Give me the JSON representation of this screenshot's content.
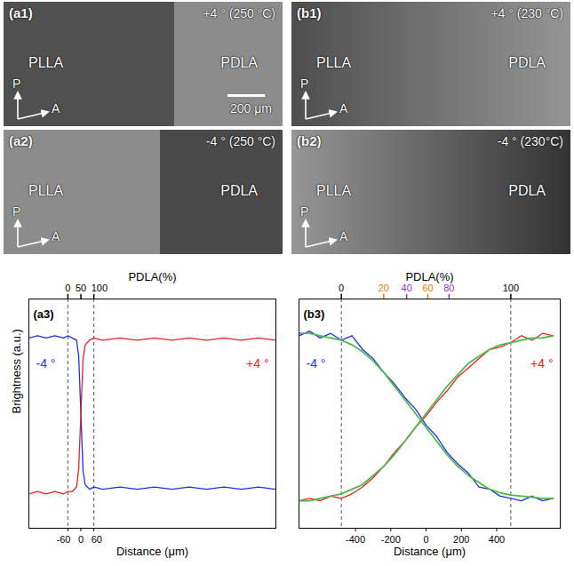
{
  "images": [
    {
      "panel": "(a1)",
      "caption": "+4 ° (250 °C)",
      "left": "PLLA",
      "right": "PDLA",
      "polarizer": "P",
      "analyzer": "A",
      "scale_bar": "200 μm"
    },
    {
      "panel": "(b1)",
      "caption": "+4 ° (230 °C)",
      "left": "PLLA",
      "right": "PDLA",
      "polarizer": "P",
      "analyzer": "A"
    },
    {
      "panel": "(a2)",
      "caption": "-4 ° (250 °C)",
      "left": "PLLA",
      "right": "PDLA",
      "polarizer": "P",
      "analyzer": "A"
    },
    {
      "panel": "(b2)",
      "caption": "-4 ° (230°C)",
      "left": "PLLA",
      "right": "PDLA",
      "polarizer": "P",
      "analyzer": "A"
    }
  ],
  "chart_data": [
    {
      "type": "line",
      "panel": "(a3)",
      "x_label": "Distance (μm)",
      "y_label": "Brightness (a.u.)",
      "x2_label": "PDLA(%)",
      "xlim": [
        -240,
        900
      ],
      "xticks": [
        -60,
        0,
        60
      ],
      "x2ticks": [
        {
          "value": -60,
          "label": "0"
        },
        {
          "value": 0,
          "label": "50"
        },
        {
          "value": 60,
          "label": "100"
        }
      ],
      "vlines": [
        -60,
        60
      ],
      "ylim": [
        0,
        1
      ],
      "tick_labels": "x",
      "x": [
        -240,
        -200,
        -160,
        -120,
        -80,
        -60,
        -40,
        -20,
        -10,
        0,
        10,
        20,
        40,
        60,
        100,
        180,
        260,
        340,
        420,
        500,
        580,
        660,
        740,
        820,
        900
      ],
      "series": [
        {
          "name": "-4 °",
          "color": "#2030e8",
          "values": [
            0.83,
            0.84,
            0.83,
            0.84,
            0.83,
            0.84,
            0.83,
            0.82,
            0.75,
            0.5,
            0.25,
            0.19,
            0.17,
            0.18,
            0.17,
            0.18,
            0.17,
            0.18,
            0.17,
            0.18,
            0.17,
            0.18,
            0.17,
            0.18,
            0.17
          ]
        },
        {
          "name": "+4 °",
          "color": "#f02020",
          "values": [
            0.15,
            0.16,
            0.15,
            0.16,
            0.15,
            0.16,
            0.16,
            0.18,
            0.26,
            0.5,
            0.74,
            0.8,
            0.82,
            0.83,
            0.82,
            0.83,
            0.82,
            0.83,
            0.82,
            0.83,
            0.82,
            0.83,
            0.82,
            0.83,
            0.82
          ]
        }
      ]
    },
    {
      "type": "line",
      "panel": "(b3)",
      "x_label": "Distance (μm)",
      "x2_label": "PDLA(%)",
      "xlim": [
        -720,
        760
      ],
      "xticks": [
        -400,
        -200,
        0,
        200,
        400
      ],
      "x2ticks": [
        {
          "value": -480,
          "label": "0"
        },
        {
          "value": -240,
          "label": "20",
          "color": "#f07800"
        },
        {
          "value": -110,
          "label": "40",
          "color": "#9b30d0"
        },
        {
          "value": 10,
          "label": "60",
          "color": "#f07800"
        },
        {
          "value": 130,
          "label": "80",
          "color": "#9b30d0"
        },
        {
          "value": 480,
          "label": "100"
        }
      ],
      "vlines": [
        -480,
        480
      ],
      "ylim": [
        0,
        1
      ],
      "tick_labels": "x",
      "x": [
        -720,
        -660,
        -600,
        -540,
        -480,
        -420,
        -360,
        -300,
        -240,
        -180,
        -120,
        -60,
        0,
        60,
        120,
        180,
        240,
        300,
        360,
        420,
        480,
        540,
        600,
        660,
        720
      ],
      "series": [
        {
          "name": "-4 °",
          "color": "#2030e8",
          "values": [
            0.84,
            0.86,
            0.83,
            0.85,
            0.82,
            0.84,
            0.78,
            0.74,
            0.68,
            0.63,
            0.57,
            0.52,
            0.45,
            0.4,
            0.33,
            0.28,
            0.24,
            0.18,
            0.17,
            0.14,
            0.13,
            0.12,
            0.14,
            0.12,
            0.13
          ]
        },
        {
          "name": "+4 °",
          "color": "#f02020",
          "values": [
            0.12,
            0.13,
            0.12,
            0.14,
            0.13,
            0.15,
            0.18,
            0.22,
            0.27,
            0.33,
            0.38,
            0.44,
            0.49,
            0.55,
            0.6,
            0.66,
            0.7,
            0.74,
            0.78,
            0.79,
            0.81,
            0.84,
            0.82,
            0.85,
            0.84
          ]
        },
        {
          "color": "#4cb84c",
          "values": [
            0.85,
            0.85,
            0.84,
            0.83,
            0.82,
            0.8,
            0.77,
            0.73,
            0.68,
            0.62,
            0.56,
            0.5,
            0.44,
            0.38,
            0.32,
            0.27,
            0.23,
            0.2,
            0.17,
            0.155,
            0.145,
            0.14,
            0.135,
            0.13,
            0.13
          ]
        },
        {
          "color": "#4cb84c",
          "values": [
            0.12,
            0.12,
            0.13,
            0.14,
            0.15,
            0.17,
            0.19,
            0.23,
            0.27,
            0.32,
            0.38,
            0.44,
            0.5,
            0.56,
            0.62,
            0.67,
            0.72,
            0.75,
            0.78,
            0.8,
            0.81,
            0.82,
            0.83,
            0.83,
            0.84
          ]
        }
      ]
    }
  ]
}
